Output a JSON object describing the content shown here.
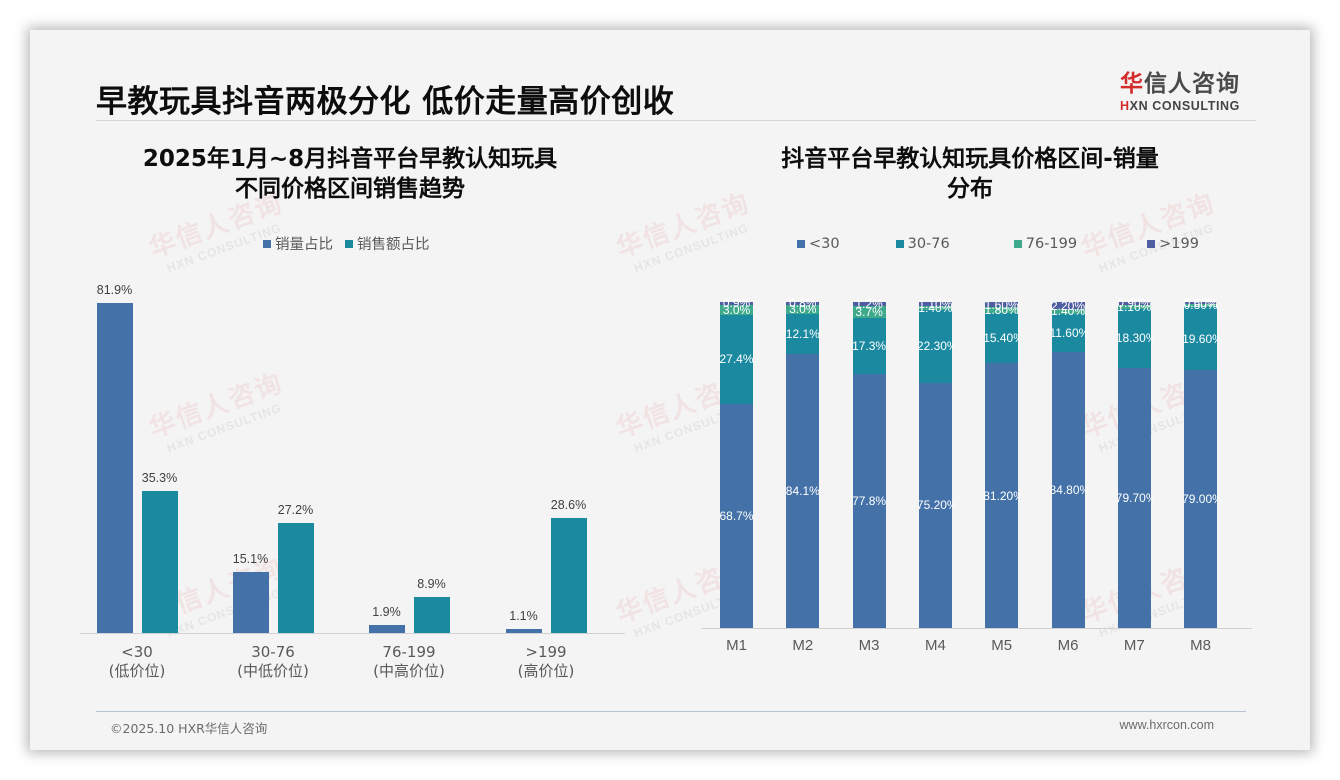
{
  "slide": {
    "title": "早教玩具抖音两极分化 低价走量高价创收",
    "logo": {
      "cn_first": "华",
      "cn_rest": "信人咨询",
      "en_first": "H",
      "en_rest": "XN CONSULTING"
    },
    "watermark": {
      "cn": "华信人咨询",
      "en": "HXN CONSULTING"
    },
    "footer": {
      "left": "©2025.10 HXR华信人咨询",
      "right": "www.hxrcon.com"
    }
  },
  "colors": {
    "blue": "#4472a8",
    "teal": "#1b8aa0",
    "green": "#3fa98c",
    "indigo": "#4e5ea0"
  },
  "chart_data": [
    {
      "type": "bar",
      "title_line1": "2025年1月~8月抖音平台早教认知玩具",
      "title_line2": "不同价格区间销售趋势",
      "legend": [
        "销量占比",
        "销售额占比"
      ],
      "legend_position": "top",
      "categories": [
        {
          "range": "<30",
          "tier": "(低价位)"
        },
        {
          "range": "30-76",
          "tier": "(中低价位)"
        },
        {
          "range": "76-199",
          "tier": "(中高价位)"
        },
        {
          "range": ">199",
          "tier": "(高价位)"
        }
      ],
      "series": [
        {
          "name": "销量占比",
          "values": [
            81.9,
            15.1,
            1.9,
            1.1
          ],
          "labels": [
            "81.9%",
            "15.1%",
            "1.9%",
            "1.1%"
          ]
        },
        {
          "name": "销售额占比",
          "values": [
            35.3,
            27.2,
            8.9,
            28.6
          ],
          "labels": [
            "35.3%",
            "27.2%",
            "8.9%",
            "28.6%"
          ]
        }
      ],
      "ylim": [
        0,
        85
      ],
      "grid": false,
      "xlabel": "",
      "ylabel": ""
    },
    {
      "type": "bar",
      "stacked": true,
      "percent": true,
      "title_line1": "抖音平台早教认知玩具价格区间-销量",
      "title_line2": "分布",
      "legend": [
        "<30",
        "30-76",
        "76-199",
        ">199"
      ],
      "legend_position": "top",
      "categories": [
        "M1",
        "M2",
        "M3",
        "M4",
        "M5",
        "M6",
        "M7",
        "M8"
      ],
      "series": [
        {
          "name": "<30",
          "values": [
            68.7,
            84.1,
            77.8,
            75.2,
            81.2,
            84.8,
            79.7,
            79.0
          ],
          "labels": [
            "68.7%",
            "84.1%",
            "77.8%",
            "75.20%",
            "81.20%",
            "84.80%",
            "79.70%",
            "79.00%"
          ]
        },
        {
          "name": "30-76",
          "values": [
            27.4,
            12.1,
            17.3,
            22.3,
            15.4,
            11.6,
            18.3,
            19.6
          ],
          "labels": [
            "27.4%",
            "12.1%",
            "17.3%",
            "22.30%",
            "15.40%",
            "11.60%",
            "18.30%",
            "19.60%"
          ]
        },
        {
          "name": "76-199",
          "values": [
            3.0,
            3.0,
            3.7,
            1.4,
            1.8,
            1.4,
            1.1,
            0.8
          ],
          "labels": [
            "3.0%",
            "3.0%",
            "3.7%",
            "1.40%",
            "1.80%",
            "1.40%",
            "1.10%",
            "0.80%"
          ]
        },
        {
          "name": ">199",
          "values": [
            0.9,
            0.8,
            1.2,
            1.1,
            1.6,
            2.2,
            0.9,
            0.6
          ],
          "labels": [
            "0.9%",
            "0.8%",
            "1.2%",
            "1.10%",
            "1.60%",
            "2.20%",
            "0.90%",
            "0.60%"
          ]
        }
      ],
      "ylim": [
        0,
        100
      ],
      "grid": false,
      "xlabel": "",
      "ylabel": ""
    }
  ]
}
